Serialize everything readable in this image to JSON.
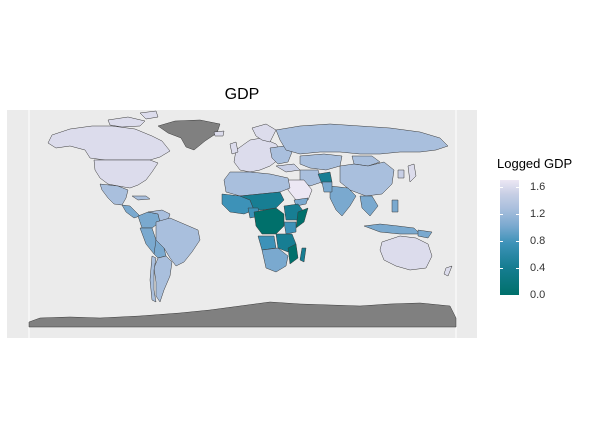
{
  "title": "GDP",
  "legend": {
    "title": "Logged GDP",
    "ticks": [
      {
        "label": "1.6",
        "value": 1.6
      },
      {
        "label": "1.2",
        "value": 1.2
      },
      {
        "label": "0.8",
        "value": 0.8
      },
      {
        "label": "0.4",
        "value": 0.4
      },
      {
        "label": "0.0",
        "value": 0.0
      }
    ],
    "range": [
      0.0,
      1.7
    ],
    "colors": [
      "#00706b",
      "#177e93",
      "#3d92b8",
      "#7aa9cf",
      "#a9bfdd",
      "#c8cfe5",
      "#ece7f4"
    ]
  },
  "colors": {
    "panel_background": "#ebebeb",
    "no_data": "#808080",
    "border": "#3a3a3a",
    "low": "#00706b",
    "high": "#ece7f4"
  }
}
